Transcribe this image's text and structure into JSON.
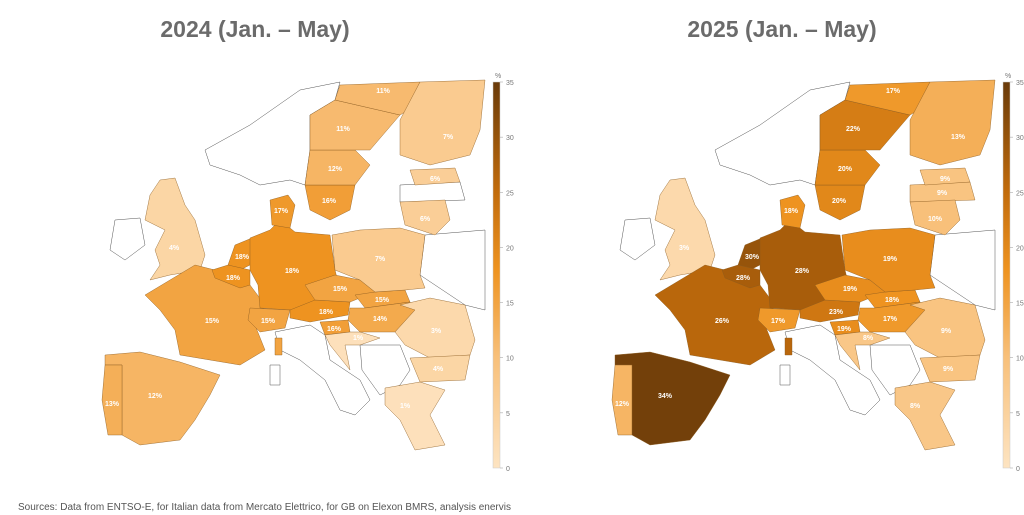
{
  "panels": [
    {
      "title": "2024 (Jan. – May)",
      "values": {
        "GB": 4,
        "FR": 15,
        "FR_CO": 15,
        "ES": 12,
        "PT": 13,
        "NL": 18,
        "BE": 18,
        "DE": 18,
        "DK": 17,
        "CH": 15,
        "AT": 18,
        "CZ": 15,
        "SK": 15,
        "HU": 14,
        "SI": 16,
        "HR": 1,
        "PL": 7,
        "SE4": 16,
        "SE3": 12,
        "SE2": 11,
        "SE1": 11,
        "FI": 7,
        "EE": 6,
        "LT": 6,
        "RO": 3,
        "BG": 4,
        "GR": 1
      }
    },
    {
      "title": "2025 (Jan. – May)",
      "values": {
        "GB": 3,
        "FR": 26,
        "FR_CO": 26,
        "ES": 34,
        "PT": 12,
        "NL": 30,
        "BE": 28,
        "DE": 28,
        "DK": 18,
        "CH": 17,
        "AT": 23,
        "CZ": 19,
        "SK": 18,
        "HU": 17,
        "SI": 19,
        "HR": 8,
        "PL": 19,
        "SE4": 20,
        "SE3": 20,
        "SE2": 22,
        "SE1": 17,
        "FI": 13,
        "EE": 9,
        "LV": 9,
        "LT": 10,
        "RO": 9,
        "BG": 9,
        "GR": 8
      }
    }
  ],
  "colorbar": {
    "unit": "%",
    "min": 0,
    "max": 35,
    "ticks": [
      0,
      5,
      10,
      15,
      20,
      25,
      30,
      35
    ],
    "colors": [
      {
        "v": 0,
        "c": "#fde4c2"
      },
      {
        "v": 10,
        "c": "#f8c07a"
      },
      {
        "v": 18,
        "c": "#ee9320"
      },
      {
        "v": 25,
        "c": "#c26c0c"
      },
      {
        "v": 35,
        "c": "#6a3b0a"
      }
    ]
  },
  "footer": "Sources: Data from ENTSO-E, for Italian data from Mercato Elettrico, for GB on Elexon BMRS, analysis enervis"
}
